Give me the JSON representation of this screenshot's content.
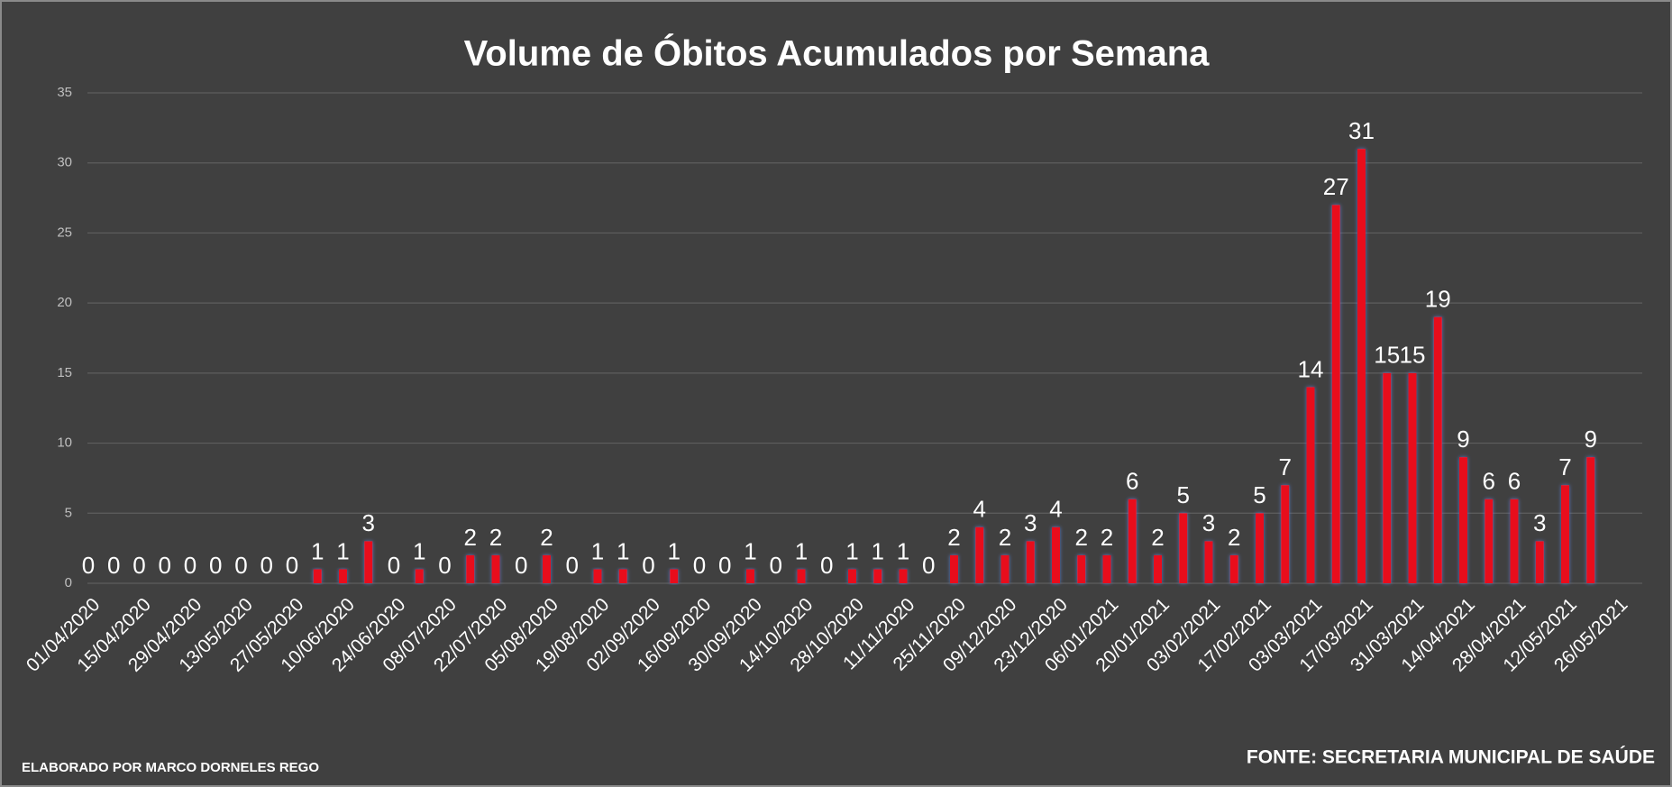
{
  "chart_data": {
    "type": "bar",
    "title": "Volume de Óbitos Acumulados por Semana",
    "categories": [
      "01/04/2020",
      null,
      "15/04/2020",
      null,
      "29/04/2020",
      null,
      "13/05/2020",
      null,
      "27/05/2020",
      null,
      "10/06/2020",
      null,
      "24/06/2020",
      null,
      "08/07/2020",
      null,
      "22/07/2020",
      null,
      "05/08/2020",
      null,
      "19/08/2020",
      null,
      "02/09/2020",
      null,
      "16/09/2020",
      null,
      "30/09/2020",
      null,
      "14/10/2020",
      null,
      "28/10/2020",
      null,
      "11/11/2020",
      null,
      "25/11/2020",
      null,
      "09/12/2020",
      null,
      "23/12/2020",
      null,
      "06/01/2021",
      null,
      "20/01/2021",
      null,
      "03/02/2021",
      null,
      "17/02/2021",
      null,
      "03/03/2021",
      null,
      "17/03/2021",
      null,
      "31/03/2021",
      null,
      "14/04/2021",
      null,
      "28/04/2021",
      null,
      "12/05/2021",
      null,
      "26/05/2021"
    ],
    "values": [
      0,
      0,
      0,
      0,
      0,
      0,
      0,
      0,
      0,
      1,
      1,
      3,
      0,
      1,
      0,
      2,
      2,
      0,
      2,
      0,
      1,
      1,
      0,
      1,
      0,
      0,
      1,
      0,
      1,
      0,
      1,
      1,
      1,
      0,
      2,
      4,
      2,
      3,
      4,
      2,
      2,
      6,
      2,
      5,
      3,
      2,
      5,
      7,
      14,
      27,
      31,
      15,
      15,
      19,
      9,
      6,
      6,
      3,
      7,
      9,
      null
    ],
    "color": "#e8111c",
    "ylim": [
      0,
      35
    ],
    "yticks": [
      0,
      5,
      10,
      15,
      20,
      25,
      30,
      35
    ],
    "grid": true,
    "credit": "ELABORADO POR MARCO DORNELES REGO",
    "source": "FONTE: SECRETARIA MUNICIPAL DE SAÚDE"
  }
}
